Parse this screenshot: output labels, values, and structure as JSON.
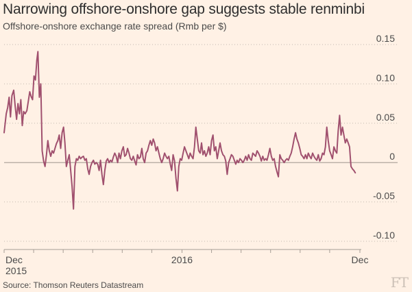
{
  "header": {
    "title": "Narrowing offshore-onshore gap suggests stable renminbi",
    "subtitle": "Offshore-onshore exchange rate spread (Rmb per $)"
  },
  "footer": {
    "source": "Source: Thomson Reuters Datastream",
    "logo": "FT"
  },
  "colors": {
    "background": "#fff1e5",
    "line": "#a0506e",
    "grid": "#c2b8ae",
    "zero_line": "#a69d95",
    "text": "#4a4a4a"
  },
  "chart_data": {
    "type": "line",
    "title": "Narrowing offshore-onshore gap suggests stable renminbi",
    "subtitle": "Offshore-onshore exchange rate spread (Rmb per $)",
    "xlabel": "",
    "ylabel": "",
    "ylim": [
      -0.1,
      0.15
    ],
    "xlim": [
      0,
      1
    ],
    "y_ticks": [
      {
        "value": 0.15,
        "label": "0.15"
      },
      {
        "value": 0.1,
        "label": "0.10"
      },
      {
        "value": 0.05,
        "label": "0.05"
      },
      {
        "value": 0,
        "label": "0"
      },
      {
        "value": -0.05,
        "label": "-0.05"
      },
      {
        "value": -0.1,
        "label": "-0.10"
      }
    ],
    "x_ticks": [
      {
        "pos": 0.0,
        "label": "Dec",
        "sublabel": "2015"
      },
      {
        "pos": 0.083,
        "label": "",
        "sublabel": ""
      },
      {
        "pos": 0.166,
        "label": "",
        "sublabel": ""
      },
      {
        "pos": 0.249,
        "label": "",
        "sublabel": ""
      },
      {
        "pos": 0.332,
        "label": "",
        "sublabel": ""
      },
      {
        "pos": 0.415,
        "label": "",
        "sublabel": ""
      },
      {
        "pos": 0.5,
        "label": "2016",
        "sublabel": ""
      },
      {
        "pos": 0.583,
        "label": "",
        "sublabel": ""
      },
      {
        "pos": 0.666,
        "label": "",
        "sublabel": ""
      },
      {
        "pos": 0.749,
        "label": "",
        "sublabel": ""
      },
      {
        "pos": 0.832,
        "label": "",
        "sublabel": ""
      },
      {
        "pos": 0.915,
        "label": "",
        "sublabel": ""
      },
      {
        "pos": 1.0,
        "label": "Dec",
        "sublabel": ""
      }
    ],
    "grid": true,
    "series": [
      {
        "name": "",
        "points": [
          [
            0.0,
            0.038
          ],
          [
            0.006,
            0.062
          ],
          [
            0.01,
            0.07
          ],
          [
            0.014,
            0.083
          ],
          [
            0.018,
            0.058
          ],
          [
            0.022,
            0.085
          ],
          [
            0.027,
            0.092
          ],
          [
            0.031,
            0.072
          ],
          [
            0.035,
            0.055
          ],
          [
            0.039,
            0.075
          ],
          [
            0.043,
            0.062
          ],
          [
            0.047,
            0.08
          ],
          [
            0.051,
            0.047
          ],
          [
            0.055,
            0.065
          ],
          [
            0.059,
            0.062
          ],
          [
            0.064,
            0.066
          ],
          [
            0.068,
            0.078
          ],
          [
            0.072,
            0.09
          ],
          [
            0.076,
            0.084
          ],
          [
            0.08,
            0.08
          ],
          [
            0.084,
            0.11
          ],
          [
            0.088,
            0.105
          ],
          [
            0.092,
            0.13
          ],
          [
            0.095,
            0.141
          ],
          [
            0.099,
            0.083
          ],
          [
            0.103,
            0.1
          ],
          [
            0.107,
            0.015
          ],
          [
            0.111,
            0.002
          ],
          [
            0.115,
            -0.005
          ],
          [
            0.119,
            0.01
          ],
          [
            0.123,
            0.028
          ],
          [
            0.127,
            0.015
          ],
          [
            0.131,
            0.008
          ],
          [
            0.135,
            0.015
          ],
          [
            0.139,
            0.012
          ],
          [
            0.143,
            0.018
          ],
          [
            0.147,
            0.024
          ],
          [
            0.151,
            0.028
          ],
          [
            0.155,
            0.035
          ],
          [
            0.159,
            0.018
          ],
          [
            0.163,
            0.038
          ],
          [
            0.167,
            0.045
          ],
          [
            0.171,
            0.025
          ],
          [
            0.175,
            -0.005
          ],
          [
            0.179,
            0.003
          ],
          [
            0.183,
            0.01
          ],
          [
            0.187,
            -0.01
          ],
          [
            0.191,
            -0.03
          ],
          [
            0.195,
            -0.059
          ],
          [
            0.199,
            -0.005
          ],
          [
            0.203,
            0.005
          ],
          [
            0.207,
            0.003
          ],
          [
            0.211,
            0.008
          ],
          [
            0.215,
            0.005
          ],
          [
            0.219,
            0.007
          ],
          [
            0.223,
            0.008
          ],
          [
            0.227,
            0.003
          ],
          [
            0.231,
            0.005
          ],
          [
            0.235,
            -0.008
          ],
          [
            0.239,
            -0.015
          ],
          [
            0.243,
            -0.005
          ],
          [
            0.247,
            0.0
          ],
          [
            0.251,
            0.003
          ],
          [
            0.255,
            -0.002
          ],
          [
            0.259,
            0.0
          ],
          [
            0.263,
            -0.002
          ],
          [
            0.267,
            -0.01
          ],
          [
            0.271,
            0.003
          ],
          [
            0.275,
            -0.015
          ],
          [
            0.279,
            -0.028
          ],
          [
            0.283,
            -0.01
          ],
          [
            0.287,
            0.002
          ],
          [
            0.291,
            0.005
          ],
          [
            0.295,
            0.0
          ],
          [
            0.299,
            0.003
          ],
          [
            0.303,
            0.001
          ],
          [
            0.307,
            0.007
          ],
          [
            0.311,
            0.012
          ],
          [
            0.315,
            0.008
          ],
          [
            0.319,
            0.0
          ],
          [
            0.323,
            0.012
          ],
          [
            0.327,
            0.005
          ],
          [
            0.331,
            0.015
          ],
          [
            0.335,
            0.02
          ],
          [
            0.339,
            0.008
          ],
          [
            0.343,
            0.01
          ],
          [
            0.347,
            0.018
          ],
          [
            0.351,
            0.012
          ],
          [
            0.355,
            0.005
          ],
          [
            0.359,
            0.003
          ],
          [
            0.363,
            0.008
          ],
          [
            0.367,
            0.002
          ],
          [
            0.371,
            -0.003
          ],
          [
            0.375,
            0.01
          ],
          [
            0.379,
            0.005
          ],
          [
            0.383,
            0.007
          ],
          [
            0.387,
            0.018
          ],
          [
            0.391,
            0.005
          ],
          [
            0.395,
            0.0
          ],
          [
            0.399,
            0.012
          ],
          [
            0.403,
            0.015
          ],
          [
            0.407,
            0.022
          ],
          [
            0.411,
            0.028
          ],
          [
            0.415,
            0.022
          ],
          [
            0.419,
            0.03
          ],
          [
            0.423,
            0.025
          ],
          [
            0.427,
            0.015
          ],
          [
            0.431,
            0.02
          ],
          [
            0.435,
            0.012
          ],
          [
            0.439,
            0.005
          ],
          [
            0.443,
            0.0
          ],
          [
            0.447,
            0.005
          ],
          [
            0.451,
            0.012
          ],
          [
            0.455,
            0.008
          ],
          [
            0.459,
            0.005
          ],
          [
            0.463,
            0.008
          ],
          [
            0.467,
            -0.002
          ],
          [
            0.471,
            -0.01
          ],
          [
            0.475,
            0.01
          ],
          [
            0.479,
            0.002
          ],
          [
            0.483,
            -0.02
          ],
          [
            0.487,
            -0.036
          ],
          [
            0.491,
            -0.005
          ],
          [
            0.495,
            0.005
          ],
          [
            0.499,
            0.003
          ],
          [
            0.503,
            0.012
          ],
          [
            0.507,
            0.02
          ],
          [
            0.511,
            0.015
          ],
          [
            0.515,
            0.01
          ],
          [
            0.519,
            0.005
          ],
          [
            0.523,
            0.012
          ],
          [
            0.527,
            0.008
          ],
          [
            0.531,
            0.005
          ],
          [
            0.535,
            0.02
          ],
          [
            0.539,
            0.045
          ],
          [
            0.543,
            0.03
          ],
          [
            0.547,
            0.015
          ],
          [
            0.551,
            0.012
          ],
          [
            0.555,
            0.025
          ],
          [
            0.559,
            0.01
          ],
          [
            0.563,
            0.015
          ],
          [
            0.567,
            0.008
          ],
          [
            0.571,
            0.012
          ],
          [
            0.575,
            0.02
          ],
          [
            0.579,
            0.01
          ],
          [
            0.583,
            0.028
          ],
          [
            0.587,
            0.035
          ],
          [
            0.591,
            0.015
          ],
          [
            0.595,
            0.02
          ],
          [
            0.599,
            0.005
          ],
          [
            0.603,
            0.015
          ],
          [
            0.607,
            0.025
          ],
          [
            0.611,
            0.015
          ],
          [
            0.615,
            0.01
          ],
          [
            0.619,
            0.008
          ],
          [
            0.623,
            0.002
          ],
          [
            0.627,
            -0.015
          ],
          [
            0.631,
            0.0
          ],
          [
            0.635,
            0.005
          ],
          [
            0.639,
            0.01
          ],
          [
            0.643,
            0.008
          ],
          [
            0.647,
            0.003
          ],
          [
            0.651,
            -0.002
          ],
          [
            0.655,
            0.003
          ],
          [
            0.659,
            0.0
          ],
          [
            0.663,
            0.005
          ],
          [
            0.667,
            0.003
          ],
          [
            0.671,
            0.0
          ],
          [
            0.675,
            0.003
          ],
          [
            0.679,
            0.008
          ],
          [
            0.683,
            0.003
          ],
          [
            0.687,
            0.01
          ],
          [
            0.691,
            0.005
          ],
          [
            0.695,
            0.003
          ],
          [
            0.699,
            0.012
          ],
          [
            0.703,
            0.01
          ],
          [
            0.707,
            0.008
          ],
          [
            0.711,
            0.015
          ],
          [
            0.715,
            0.012
          ],
          [
            0.719,
            0.008
          ],
          [
            0.723,
            0.002
          ],
          [
            0.727,
            0.008
          ],
          [
            0.731,
            0.003
          ],
          [
            0.735,
            0.005
          ],
          [
            0.739,
            0.003
          ],
          [
            0.743,
            0.01
          ],
          [
            0.747,
            0.018
          ],
          [
            0.751,
            0.008
          ],
          [
            0.755,
            0.003
          ],
          [
            0.759,
            0.005
          ],
          [
            0.763,
            -0.005
          ],
          [
            0.767,
            -0.012
          ],
          [
            0.771,
            -0.018
          ],
          [
            0.775,
            0.01
          ],
          [
            0.779,
            0.005
          ],
          [
            0.783,
            0.003
          ],
          [
            0.787,
            0.0
          ],
          [
            0.791,
            0.003
          ],
          [
            0.795,
            0.005
          ],
          [
            0.799,
            0.003
          ],
          [
            0.803,
            0.008
          ],
          [
            0.807,
            0.012
          ],
          [
            0.811,
            0.02
          ],
          [
            0.815,
            0.03
          ],
          [
            0.819,
            0.038
          ],
          [
            0.823,
            0.03
          ],
          [
            0.827,
            0.025
          ],
          [
            0.831,
            0.018
          ],
          [
            0.835,
            0.01
          ],
          [
            0.839,
            0.008
          ],
          [
            0.843,
            0.005
          ],
          [
            0.847,
            0.01
          ],
          [
            0.851,
            0.005
          ],
          [
            0.855,
            0.012
          ],
          [
            0.859,
            0.008
          ],
          [
            0.863,
            0.005
          ],
          [
            0.867,
            0.012
          ],
          [
            0.871,
            0.008
          ],
          [
            0.875,
            0.005
          ],
          [
            0.879,
            0.003
          ],
          [
            0.883,
            0.01
          ],
          [
            0.887,
            0.002
          ],
          [
            0.891,
            0.005
          ],
          [
            0.895,
            0.012
          ],
          [
            0.899,
            0.01
          ],
          [
            0.903,
            0.02
          ],
          [
            0.907,
            0.045
          ],
          [
            0.911,
            0.028
          ],
          [
            0.915,
            0.015
          ],
          [
            0.919,
            0.01
          ],
          [
            0.923,
            0.005
          ],
          [
            0.927,
            0.02
          ],
          [
            0.931,
            0.015
          ],
          [
            0.935,
            0.012
          ],
          [
            0.939,
            0.04
          ],
          [
            0.943,
            0.06
          ],
          [
            0.947,
            0.035
          ],
          [
            0.951,
            0.045
          ],
          [
            0.955,
            0.035
          ],
          [
            0.959,
            0.025
          ],
          [
            0.963,
            0.03
          ],
          [
            0.967,
            0.025
          ],
          [
            0.971,
            0.02
          ],
          [
            0.975,
            -0.005
          ],
          [
            0.979,
            -0.008
          ],
          [
            0.983,
            -0.01
          ],
          [
            0.987,
            -0.013
          ]
        ]
      }
    ]
  }
}
